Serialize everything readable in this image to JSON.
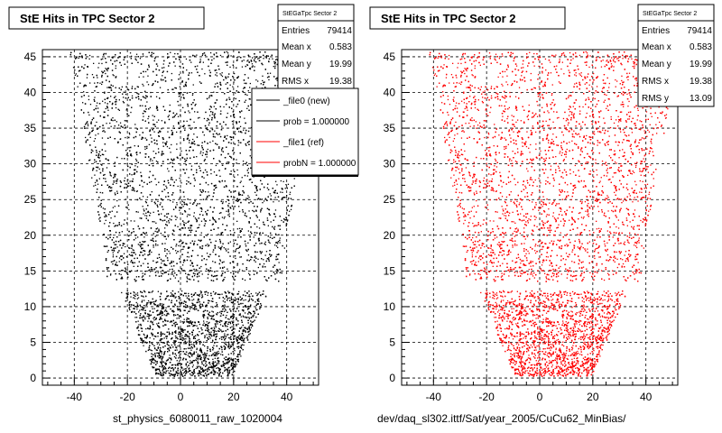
{
  "chart_data": [
    {
      "type": "scatter",
      "title": "StE Hits in TPC Sector 2",
      "xlim": [
        -52,
        52
      ],
      "ylim": [
        -1,
        46
      ],
      "x_ticks": [
        -40,
        -20,
        0,
        20,
        40
      ],
      "y_ticks": [
        0,
        5,
        10,
        15,
        20,
        25,
        30,
        35,
        40,
        45
      ],
      "grid": true,
      "point_color": "#000000",
      "xlabel_footer": "st_physics_6080011_raw_1020004",
      "stats": {
        "header": "StEGaTpc Sector 2",
        "rows": [
          {
            "label": "Entries",
            "value": "79414"
          },
          {
            "label": "Mean x",
            "value": "0.583"
          },
          {
            "label": "Mean y",
            "value": "19.99"
          },
          {
            "label": "RMS x",
            "value": "19.38"
          }
        ]
      },
      "legend": {
        "placement": "top-right",
        "entries": [
          {
            "label": "_file0 (new)",
            "color": "#000000"
          },
          {
            "label": "prob = 1.000000",
            "color": "#000000"
          },
          {
            "label": "_file1 (ref)",
            "color": "#ff0000"
          },
          {
            "label": "probN = 1.000000",
            "color": "#ff0000"
          }
        ]
      },
      "series": [
        {
          "entries": 79414,
          "mean_x": 0.583,
          "mean_y": 19.99,
          "rms_x": 19.38
        }
      ]
    },
    {
      "type": "scatter",
      "title": "StE Hits in TPC Sector 2",
      "xlim": [
        -52,
        52
      ],
      "ylim": [
        -1,
        46
      ],
      "x_ticks": [
        -40,
        -20,
        0,
        20,
        40
      ],
      "y_ticks": [
        0,
        5,
        10,
        15,
        20,
        25,
        30,
        35,
        40,
        45
      ],
      "grid": true,
      "point_color": "#ff0000",
      "xlabel_footer": "dev/daq_sl302.ittf/Sat/year_2005/CuCu62_MinBias/",
      "stats": {
        "header": "StEGaTpc Sector 2",
        "rows": [
          {
            "label": "Entries",
            "value": "79414"
          },
          {
            "label": "Mean x",
            "value": "0.583"
          },
          {
            "label": "Mean y",
            "value": "19.99"
          },
          {
            "label": "RMS x",
            "value": "19.38"
          },
          {
            "label": "RMS y",
            "value": "13.09"
          }
        ]
      },
      "series": [
        {
          "entries": 79414,
          "mean_x": 0.583,
          "mean_y": 19.99,
          "rms_x": 19.38,
          "rms_y": 13.09
        }
      ]
    }
  ]
}
